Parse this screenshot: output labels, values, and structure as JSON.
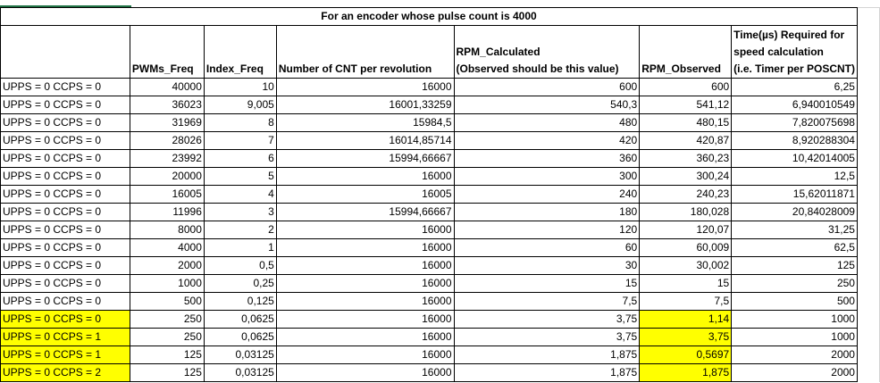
{
  "title": "For an encoder whose pulse count is 4000",
  "headers": {
    "pwm": "PWMs_Freq",
    "index": "Index_Freq",
    "cnt": "Number of CNT per revolution",
    "rpm_calc_1": "RPM_Calculated",
    "rpm_calc_2": "(Observed should be this value)",
    "rpm_obs": "RPM_Observed",
    "time_1": "Time(µs) Required for",
    "time_2": "speed calculation",
    "time_3": "(i.e. Timer per POSCNT)"
  },
  "rows": [
    {
      "label": "UPPS = 0  CCPS = 0",
      "pwm": "40000",
      "index": "10",
      "cnt": "16000",
      "rpm_calc": "600",
      "rpm_obs": "600",
      "time": "6,25",
      "hl_label": false,
      "hl_obs": false
    },
    {
      "label": "UPPS = 0  CCPS = 0",
      "pwm": "36023",
      "index": "9,005",
      "cnt": "16001,33259",
      "rpm_calc": "540,3",
      "rpm_obs": "541,12",
      "time": "6,940010549",
      "hl_label": false,
      "hl_obs": false
    },
    {
      "label": "UPPS = 0  CCPS = 0",
      "pwm": "31969",
      "index": "8",
      "cnt": "15984,5",
      "rpm_calc": "480",
      "rpm_obs": "480,15",
      "time": "7,820075698",
      "hl_label": false,
      "hl_obs": false
    },
    {
      "label": "UPPS = 0  CCPS = 0",
      "pwm": "28026",
      "index": "7",
      "cnt": "16014,85714",
      "rpm_calc": "420",
      "rpm_obs": "420,87",
      "time": "8,920288304",
      "hl_label": false,
      "hl_obs": false
    },
    {
      "label": "UPPS = 0  CCPS = 0",
      "pwm": "23992",
      "index": "6",
      "cnt": "15994,66667",
      "rpm_calc": "360",
      "rpm_obs": "360,23",
      "time": "10,42014005",
      "hl_label": false,
      "hl_obs": false
    },
    {
      "label": "UPPS = 0  CCPS = 0",
      "pwm": "20000",
      "index": "5",
      "cnt": "16000",
      "rpm_calc": "300",
      "rpm_obs": "300,24",
      "time": "12,5",
      "hl_label": false,
      "hl_obs": false
    },
    {
      "label": "UPPS = 0  CCPS = 0",
      "pwm": "16005",
      "index": "4",
      "cnt": "16005",
      "rpm_calc": "240",
      "rpm_obs": "240,23",
      "time": "15,62011871",
      "hl_label": false,
      "hl_obs": false
    },
    {
      "label": "UPPS = 0  CCPS = 0",
      "pwm": "11996",
      "index": "3",
      "cnt": "15994,66667",
      "rpm_calc": "180",
      "rpm_obs": "180,028",
      "time": "20,84028009",
      "hl_label": false,
      "hl_obs": false
    },
    {
      "label": "UPPS = 0  CCPS = 0",
      "pwm": "8000",
      "index": "2",
      "cnt": "16000",
      "rpm_calc": "120",
      "rpm_obs": "120,07",
      "time": "31,25",
      "hl_label": false,
      "hl_obs": false
    },
    {
      "label": "UPPS = 0  CCPS = 0",
      "pwm": "4000",
      "index": "1",
      "cnt": "16000",
      "rpm_calc": "60",
      "rpm_obs": "60,009",
      "time": "62,5",
      "hl_label": false,
      "hl_obs": false
    },
    {
      "label": "UPPS = 0  CCPS = 0",
      "pwm": "2000",
      "index": "0,5",
      "cnt": "16000",
      "rpm_calc": "30",
      "rpm_obs": "30,002",
      "time": "125",
      "hl_label": false,
      "hl_obs": false
    },
    {
      "label": "UPPS = 0  CCPS = 0",
      "pwm": "1000",
      "index": "0,25",
      "cnt": "16000",
      "rpm_calc": "15",
      "rpm_obs": "15",
      "time": "250",
      "hl_label": false,
      "hl_obs": false
    },
    {
      "label": "UPPS = 0  CCPS = 0",
      "pwm": "500",
      "index": "0,125",
      "cnt": "16000",
      "rpm_calc": "7,5",
      "rpm_obs": "7,5",
      "time": "500",
      "hl_label": false,
      "hl_obs": false
    },
    {
      "label": "UPPS = 0  CCPS = 0",
      "pwm": "250",
      "index": "0,0625",
      "cnt": "16000",
      "rpm_calc": "3,75",
      "rpm_obs": "1,14",
      "time": "1000",
      "hl_label": true,
      "hl_obs": true
    },
    {
      "label": "UPPS = 0  CCPS = 1",
      "pwm": "250",
      "index": "0,0625",
      "cnt": "16000",
      "rpm_calc": "3,75",
      "rpm_obs": "3,75",
      "time": "1000",
      "hl_label": true,
      "hl_obs": true
    },
    {
      "label": "UPPS = 0  CCPS = 1",
      "pwm": "125",
      "index": "0,03125",
      "cnt": "16000",
      "rpm_calc": "1,875",
      "rpm_obs": "0,5697",
      "time": "2000",
      "hl_label": true,
      "hl_obs": true
    },
    {
      "label": "UPPS = 0  CCPS = 2",
      "pwm": "125",
      "index": "0,03125",
      "cnt": "16000",
      "rpm_calc": "1,875",
      "rpm_obs": "1,875",
      "time": "2000",
      "hl_label": true,
      "hl_obs": true
    }
  ],
  "colors": {
    "highlight": "#ffff00",
    "grid": "#000000"
  }
}
